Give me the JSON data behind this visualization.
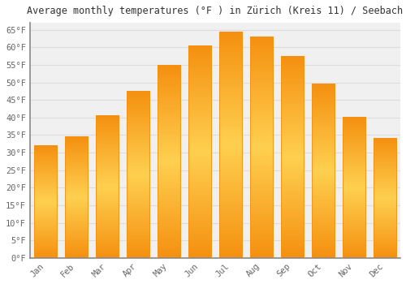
{
  "title": "Average monthly temperatures (°F ) in Zürich (Kreis 11) / Seebach",
  "months": [
    "Jan",
    "Feb",
    "Mar",
    "Apr",
    "May",
    "Jun",
    "Jul",
    "Aug",
    "Sep",
    "Oct",
    "Nov",
    "Dec"
  ],
  "values": [
    32,
    34.5,
    40.5,
    47.5,
    55,
    60.5,
    64.5,
    63,
    57.5,
    49.5,
    40,
    34
  ],
  "bar_color_center": "#FFD050",
  "bar_color_edge": "#F59010",
  "background_color": "#FFFFFF",
  "plot_bg_color": "#F0F0F0",
  "grid_color": "#DDDDDD",
  "ylim": [
    0,
    67
  ],
  "yticks": [
    0,
    5,
    10,
    15,
    20,
    25,
    30,
    35,
    40,
    45,
    50,
    55,
    60,
    65
  ],
  "ytick_labels": [
    "0°F",
    "5°F",
    "10°F",
    "15°F",
    "20°F",
    "25°F",
    "30°F",
    "35°F",
    "40°F",
    "45°F",
    "50°F",
    "55°F",
    "60°F",
    "65°F"
  ],
  "title_fontsize": 8.5,
  "tick_fontsize": 7.5,
  "title_color": "#333333",
  "tick_color": "#666666",
  "bar_width": 0.75
}
